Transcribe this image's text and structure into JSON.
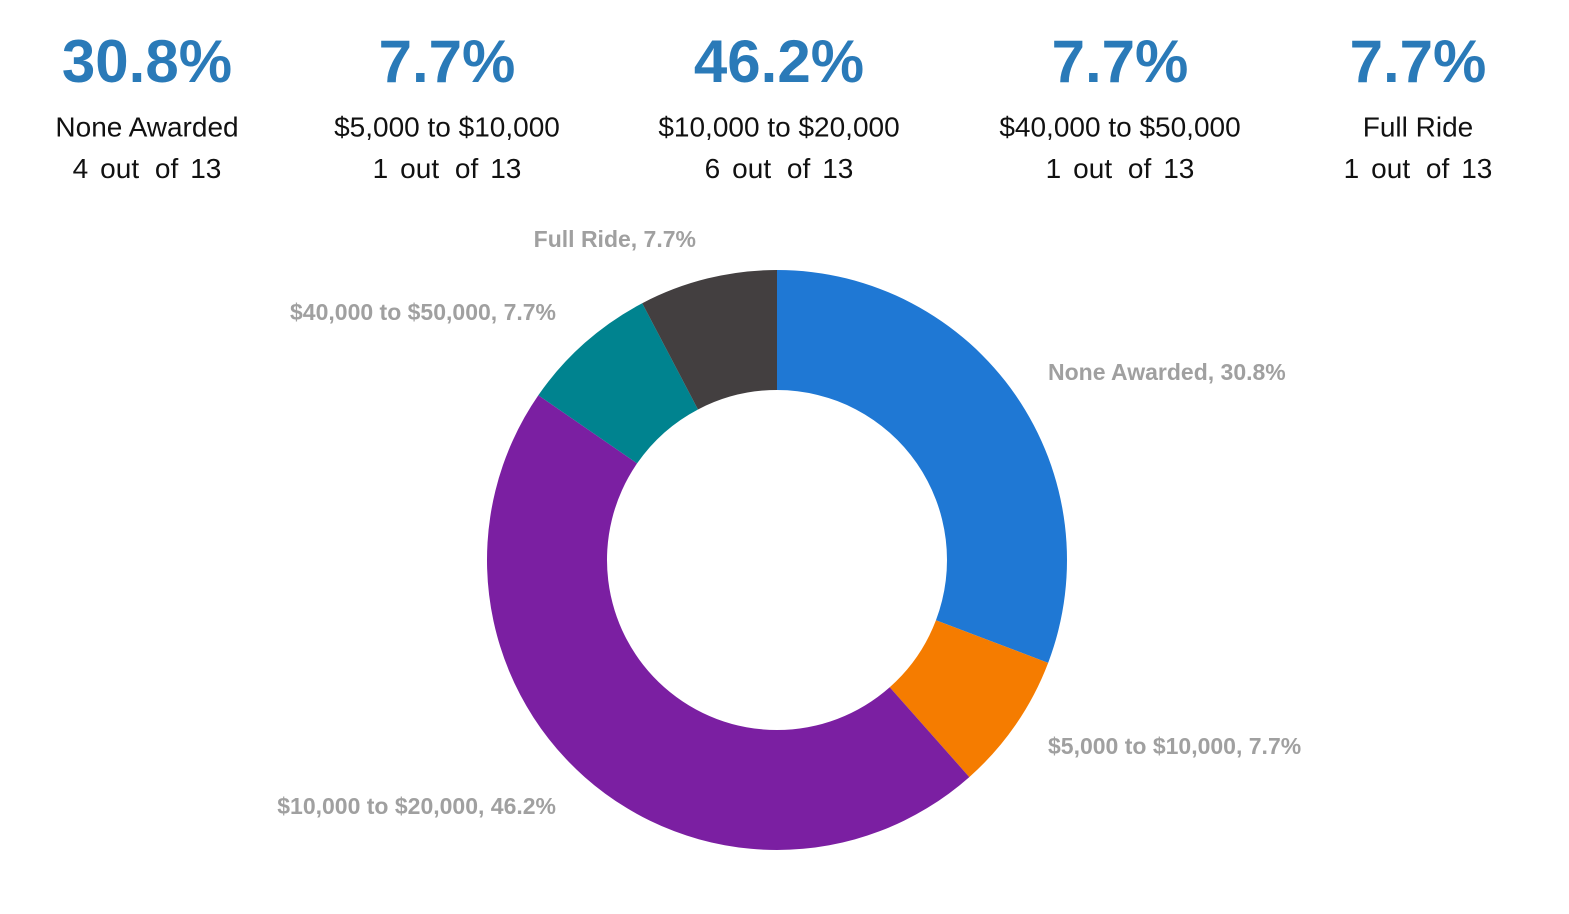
{
  "chart_data": {
    "type": "donut",
    "categories": [
      "None Awarded",
      "$5,000 to $10,000",
      "$10,000 to $20,000",
      "$40,000 to $50,000",
      "Full Ride"
    ],
    "values": [
      30.8,
      7.7,
      46.2,
      7.7,
      7.7
    ],
    "percent_labels": [
      "30.8%",
      "7.7%",
      "46.2%",
      "7.7%",
      "7.7%"
    ],
    "value_labels": [
      "None Awarded, 30.8%",
      "$5,000 to $10,000, 7.7%",
      "$10,000 to $20,000, 46.2%",
      "$40,000 to $50,000, 7.7%",
      "Full Ride, 7.7%"
    ],
    "colors": [
      "#1f78d4",
      "#f57c00",
      "#7b1fa2",
      "#00838f",
      "#433f40"
    ],
    "counts": [
      4,
      1,
      6,
      1,
      1
    ],
    "count_joiner": "out of",
    "total": 13
  }
}
